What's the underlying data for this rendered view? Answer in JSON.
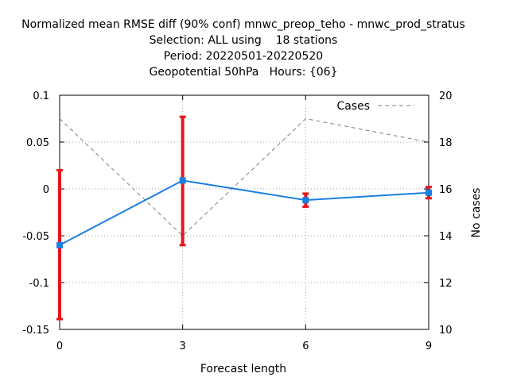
{
  "chart_data": {
    "type": "line",
    "title_lines": [
      "Normalized mean RMSE diff (90% conf) mnwc_preop_teho - mnwc_prod_stratus",
      "Selection: ALL using    18 stations",
      "Period: 20220501-20220520",
      "Geopotential 50hPa   Hours: {06}"
    ],
    "xlabel": "Forecast length",
    "ylabel": "",
    "y2label": "No cases",
    "x_ticks": [
      "0",
      "3",
      "6",
      "9"
    ],
    "y_ticks": [
      "0.1",
      "0.05",
      "0",
      "-0.05",
      "-0.1",
      "-0.15"
    ],
    "y2_ticks": [
      "20",
      "18",
      "16",
      "14",
      "12",
      "10"
    ],
    "xlim": [
      0,
      9
    ],
    "ylim": [
      -0.15,
      0.1
    ],
    "y2lim": [
      10,
      20
    ],
    "grid": true,
    "legend_position": "top-right",
    "series": [
      {
        "name": "",
        "axis": "y",
        "color": "#1a7ee0",
        "x": [
          0,
          3,
          6,
          9
        ],
        "y": [
          -0.06,
          0.009,
          -0.012,
          -0.004
        ],
        "error_low": [
          -0.139,
          -0.06,
          -0.019,
          -0.01
        ],
        "error_high": [
          0.02,
          0.077,
          -0.005,
          0.002
        ],
        "error_color": "#e8141c"
      },
      {
        "name": "Cases",
        "axis": "y2",
        "color": "#808080",
        "dashed": true,
        "x": [
          0,
          3,
          6,
          9
        ],
        "y": [
          19,
          14,
          19,
          18
        ]
      }
    ]
  }
}
